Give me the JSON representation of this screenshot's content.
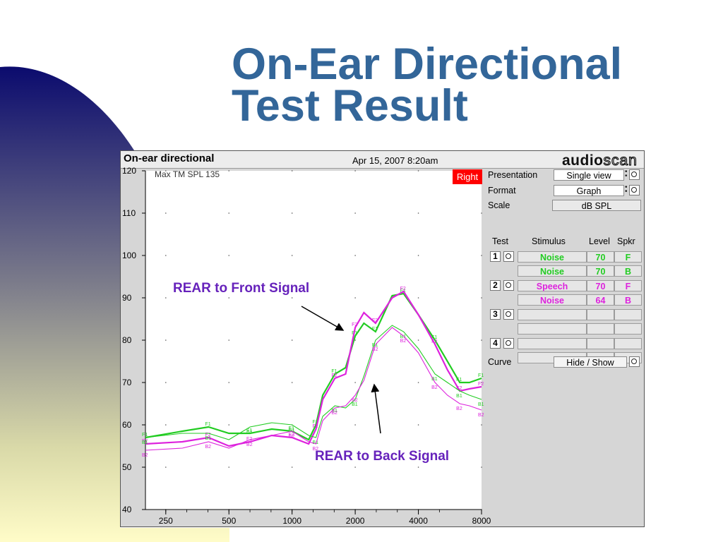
{
  "slide": {
    "title_line1": "On-Ear Directional",
    "title_line2": "Test Result",
    "title_color": "#336699"
  },
  "app": {
    "title": "On-ear directional",
    "date": "Apr 15, 2007 8:20am",
    "brand_part1": "audio",
    "brand_part2": "scan",
    "graph_note": "Max TM SPL 135",
    "ear_badge": "Right",
    "ear_badge_color": "#ff0000"
  },
  "panel": {
    "presentation_label": "Presentation",
    "presentation_value": "Single view",
    "format_label": "Format",
    "format_value": "Graph",
    "scale_label": "Scale",
    "scale_value": "dB SPL",
    "col_test": "Test",
    "col_stimulus": "Stimulus",
    "col_level": "Level",
    "col_spkr": "Spkr",
    "tests": [
      {
        "number": "1",
        "rows": [
          {
            "stimulus": "Noise",
            "level": "70",
            "spkr": "F",
            "color": "green"
          },
          {
            "stimulus": "Noise",
            "level": "70",
            "spkr": "B",
            "color": "green"
          }
        ]
      },
      {
        "number": "2",
        "rows": [
          {
            "stimulus": "Speech",
            "level": "70",
            "spkr": "F",
            "color": "magenta"
          },
          {
            "stimulus": "Noise",
            "level": "64",
            "spkr": "B",
            "color": "magenta"
          }
        ]
      },
      {
        "number": "3",
        "rows": [
          {
            "stimulus": "",
            "level": "",
            "spkr": "",
            "color": ""
          },
          {
            "stimulus": "",
            "level": "",
            "spkr": "",
            "color": ""
          }
        ]
      },
      {
        "number": "4",
        "rows": [
          {
            "stimulus": "",
            "level": "",
            "spkr": "",
            "color": ""
          },
          {
            "stimulus": "",
            "level": "",
            "spkr": "",
            "color": ""
          }
        ]
      }
    ],
    "curve_label": "Curve",
    "curve_value": "Hide / Show"
  },
  "annotations": {
    "front": "REAR to Front Signal",
    "back": "REAR to Back Signal",
    "color": "#6622bb"
  },
  "chart_data": {
    "type": "line",
    "y_ticks": [
      120,
      110,
      100,
      90,
      80,
      70,
      60,
      50,
      40
    ],
    "ylim": [
      40,
      120
    ],
    "x_ticks": [
      "250",
      "500",
      "1000",
      "2000",
      "4000",
      "8000"
    ],
    "x_scale": "log",
    "xlim": [
      200,
      8000
    ],
    "x": [
      200,
      300,
      400,
      500,
      630,
      800,
      1000,
      1200,
      1300,
      1400,
      1600,
      1800,
      2000,
      2200,
      2500,
      3000,
      3400,
      4000,
      4800,
      5500,
      6300,
      7000,
      8000
    ],
    "series": [
      {
        "marker": "F1",
        "color": "#22cc22",
        "values": [
          57,
          58.5,
          59.5,
          58,
          58,
          59,
          58.5,
          56.5,
          60,
          67,
          72,
          73.5,
          81,
          84,
          82,
          90.5,
          91,
          86,
          80,
          75,
          70,
          70,
          71
        ]
      },
      {
        "marker": "F2",
        "color": "#dd22dd",
        "values": [
          55.5,
          56,
          57,
          55,
          56,
          57.5,
          57,
          55.5,
          59,
          66,
          71,
          72,
          83,
          86.5,
          84,
          90,
          91.5,
          86,
          79,
          73,
          68,
          68.5,
          69
        ]
      },
      {
        "marker": "B1",
        "color": "#22cc22",
        "values": [
          57,
          58,
          58,
          56.5,
          59.5,
          60.5,
          60,
          57.5,
          57,
          62,
          64.5,
          64,
          66,
          71.5,
          80,
          83.5,
          82,
          78,
          72,
          70,
          68,
          67,
          66
        ]
      },
      {
        "marker": "B2",
        "color": "#dd22dd",
        "values": [
          54,
          54.5,
          56,
          54.5,
          56.5,
          57.5,
          58.5,
          56,
          55.5,
          61,
          64,
          64.5,
          67,
          70.5,
          79,
          83,
          81,
          77,
          70,
          67,
          65,
          64.5,
          63.5
        ]
      }
    ],
    "grid": "dotted"
  }
}
